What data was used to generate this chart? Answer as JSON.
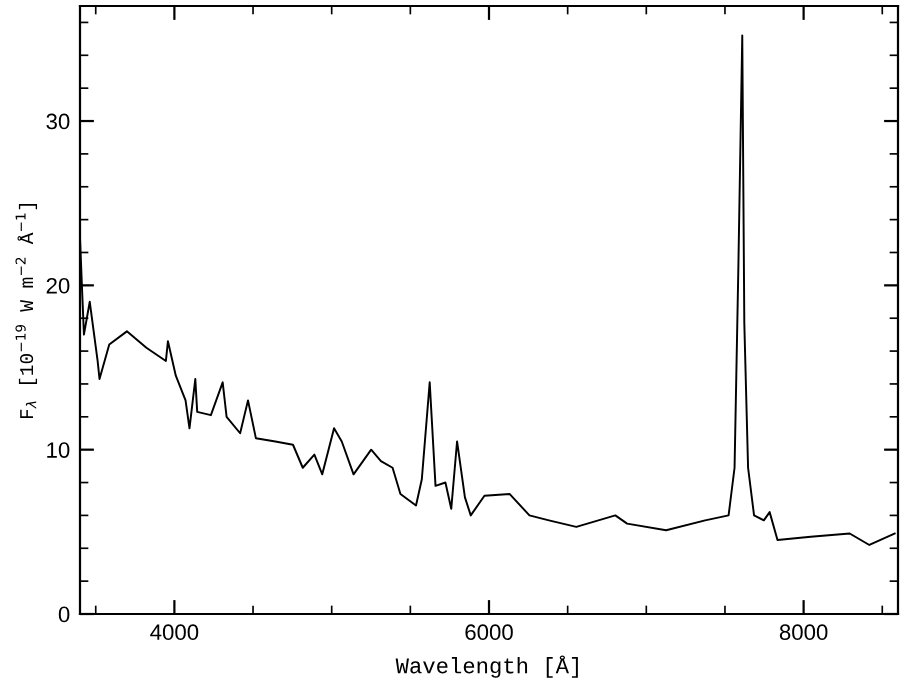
{
  "chart_data": {
    "type": "line",
    "xlabel": "Wavelength [Å]",
    "ylabel": "F$_{λ}$ [10$^{−19}$ W m$^{−2}$ Å$^{−1}$]",
    "xlim": [
      3400,
      8600
    ],
    "ylim": [
      0,
      37
    ],
    "xticks": [
      4000,
      6000,
      8000
    ],
    "yticks": [
      0,
      10,
      20,
      30
    ],
    "grid": false,
    "marker": "none",
    "line_style": "solid",
    "series": [
      {
        "color": "#000000",
        "x": [
          3400,
          3412,
          3425,
          3462,
          3512,
          3524,
          3586,
          3698,
          3822,
          3946,
          3959,
          4009,
          4071,
          4096,
          4133,
          4145,
          4232,
          4307,
          4332,
          4418,
          4468,
          4518,
          4642,
          4754,
          4816,
          4890,
          4940,
          5015,
          5064,
          5139,
          5251,
          5313,
          5387,
          5437,
          5536,
          5573,
          5623,
          5660,
          5723,
          5760,
          5797,
          5847,
          5884,
          5971,
          6132,
          6257,
          6381,
          6555,
          6803,
          6878,
          7126,
          7374,
          7523,
          7561,
          7585,
          7610,
          7623,
          7647,
          7685,
          7747,
          7784,
          7834,
          8045,
          8293,
          8418,
          8579
        ],
        "values": [
          22.9,
          20,
          17,
          19,
          15.4,
          14.3,
          16.4,
          17.2,
          16.2,
          15.4,
          16.6,
          14.5,
          13,
          11.3,
          14.3,
          12.3,
          12.1,
          14.1,
          12,
          11,
          13,
          10.7,
          10.5,
          10.3,
          8.9,
          9.7,
          8.5,
          11.3,
          10.5,
          8.5,
          10,
          9.3,
          8.9,
          7.3,
          6.6,
          8.2,
          14.1,
          7.8,
          8,
          6.4,
          10.5,
          7.1,
          6,
          7.2,
          7.3,
          6,
          5.7,
          5.3,
          6,
          5.5,
          5.1,
          5.7,
          6,
          8.9,
          21,
          35.2,
          17.7,
          8.9,
          6,
          5.7,
          6.2,
          4.5,
          4.7,
          4.9,
          4.2,
          4.9
        ]
      }
    ]
  }
}
